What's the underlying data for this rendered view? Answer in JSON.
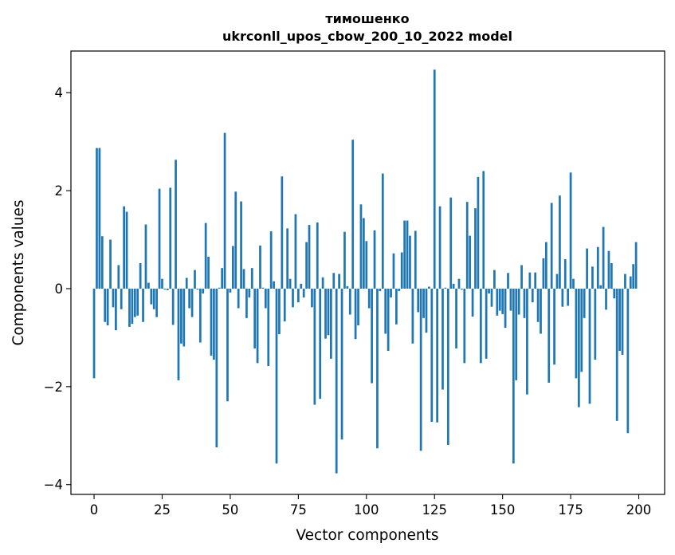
{
  "chart_data": {
    "type": "bar",
    "title_line1": "тимошенко",
    "title_line2": "ukrconll_upos_cbow_200_10_2022 model",
    "xlabel": "Vector components",
    "ylabel": "Components values",
    "xlim": [
      -8.5,
      209.5
    ],
    "ylim": [
      -4.2,
      4.85
    ],
    "xticks": [
      0,
      25,
      50,
      75,
      100,
      125,
      150,
      175,
      200
    ],
    "xtick_labels": [
      "0",
      "25",
      "50",
      "75",
      "100",
      "125",
      "150",
      "175",
      "200"
    ],
    "yticks": [
      -4,
      -2,
      0,
      2,
      4
    ],
    "ytick_labels": [
      "−4",
      "−2",
      "0",
      "2",
      "4"
    ],
    "bar_color": "#1f77b4",
    "grid": false,
    "values": [
      -1.83,
      2.87,
      2.87,
      1.07,
      -0.68,
      -0.75,
      1.0,
      -0.38,
      -0.85,
      0.48,
      -0.42,
      1.68,
      1.57,
      -0.78,
      -0.72,
      -0.58,
      -0.55,
      0.52,
      -0.68,
      1.31,
      0.12,
      -0.32,
      -0.42,
      -0.58,
      2.04,
      0.2,
      -0.02,
      -0.03,
      2.06,
      -0.74,
      2.63,
      -1.87,
      -1.12,
      -1.18,
      0.22,
      -0.4,
      -0.58,
      0.38,
      -0.02,
      -1.1,
      -0.1,
      1.34,
      0.65,
      -1.37,
      -1.45,
      -3.24,
      0.02,
      0.42,
      3.18,
      -2.3,
      -0.08,
      0.87,
      1.98,
      -0.4,
      1.78,
      0.4,
      -0.6,
      -0.18,
      0.42,
      -1.22,
      -1.52,
      0.88,
      0.02,
      -0.4,
      -1.58,
      1.17,
      0.15,
      -3.57,
      -0.93,
      2.29,
      -0.67,
      1.23,
      0.2,
      -0.38,
      1.52,
      -0.28,
      0.1,
      -0.18,
      0.95,
      1.3,
      -0.38,
      -2.37,
      1.35,
      -2.25,
      0.23,
      -1.02,
      -0.95,
      -1.43,
      0.32,
      -3.77,
      0.3,
      -3.08,
      1.16,
      0.05,
      -0.53,
      3.04,
      -1.03,
      -0.75,
      1.72,
      1.44,
      0.97,
      -0.4,
      -1.93,
      1.19,
      -3.26,
      -0.05,
      2.35,
      -0.92,
      -1.27,
      -0.18,
      0.72,
      -0.73,
      -0.05,
      0.74,
      1.39,
      1.39,
      1.08,
      -1.12,
      1.18,
      -0.48,
      -3.31,
      -0.6,
      -0.9,
      0.04,
      -2.72,
      4.47,
      -2.73,
      1.68,
      -2.06,
      0.02,
      -3.19,
      1.86,
      0.1,
      -1.22,
      0.2,
      -0.02,
      -1.52,
      1.77,
      1.08,
      -0.57,
      1.64,
      2.28,
      -1.52,
      2.4,
      -1.43,
      -0.1,
      -0.37,
      0.38,
      -0.55,
      -0.45,
      -0.52,
      -0.8,
      0.32,
      -0.45,
      -3.57,
      -1.87,
      -0.53,
      0.48,
      -0.6,
      -2.16,
      0.33,
      -0.28,
      0.33,
      -0.68,
      -0.92,
      0.62,
      0.95,
      -1.92,
      1.75,
      -1.55,
      0.3,
      1.9,
      -0.37,
      0.6,
      -0.35,
      2.37,
      0.2,
      -1.83,
      -2.42,
      -1.7,
      -0.6,
      0.82,
      -2.35,
      0.45,
      -1.45,
      0.85,
      0.07,
      1.26,
      -0.43,
      0.77,
      0.52,
      -0.2,
      -2.7,
      -1.27,
      -1.35,
      0.3,
      -2.95,
      0.25,
      0.5,
      0.95
    ]
  }
}
